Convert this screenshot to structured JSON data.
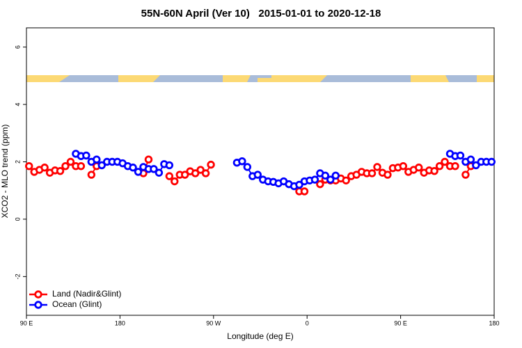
{
  "chart_data": {
    "type": "line",
    "title": "55N-60N April (Ver 10)   2015-01-01 to 2020-12-18",
    "xlabel": "Longitude (deg E)",
    "ylabel": "XCO2 - MLO trend (ppm)",
    "x": [
      92.5,
      97.5,
      102.5,
      107.5,
      112.5,
      117.5,
      122.5,
      127.5,
      132.5,
      137.5,
      142.5,
      147.5,
      152.5,
      157.5,
      162.5,
      167.5,
      172.5,
      177.5,
      182.5,
      187.5,
      192.5,
      197.5,
      202.5,
      207.5,
      212.5,
      217.5,
      222.5,
      227.5,
      232.5,
      237.5,
      242.5,
      247.5,
      252.5,
      257.5,
      262.5,
      267.5,
      272.5,
      277.5,
      282.5,
      287.5,
      292.5,
      297.5,
      302.5,
      307.5,
      312.5,
      317.5,
      322.5,
      327.5,
      332.5,
      337.5,
      342.5,
      347.5,
      352.5,
      357.5,
      362.5,
      367.5,
      372.5,
      377.5,
      382.5,
      387.5,
      392.5,
      397.5,
      402.5,
      407.5,
      412.5,
      417.5,
      422.5,
      427.5,
      432.5,
      437.5,
      442.5,
      447.5,
      452.5,
      457.5,
      462.5,
      467.5,
      472.5,
      477.5,
      482.5,
      487.5,
      492.5,
      497.5,
      502.5,
      507.5,
      512.5,
      517.5,
      522.5,
      527.5,
      532.5,
      537.5
    ],
    "series": [
      {
        "name": "Land (Nadir&Glint)",
        "color": "#ff0000",
        "values": [
          1.85,
          1.65,
          1.72,
          1.8,
          1.62,
          1.7,
          1.68,
          1.85,
          2.0,
          1.85,
          1.85,
          null,
          1.55,
          1.85,
          null,
          null,
          null,
          null,
          null,
          null,
          null,
          null,
          1.6,
          2.08,
          null,
          null,
          null,
          1.5,
          1.32,
          1.55,
          1.55,
          1.67,
          1.6,
          1.72,
          1.6,
          1.9,
          null,
          null,
          null,
          null,
          null,
          null,
          null,
          null,
          null,
          null,
          null,
          null,
          null,
          null,
          null,
          null,
          0.97,
          0.97,
          null,
          null,
          1.22,
          1.38,
          1.35,
          1.35,
          1.42,
          1.35,
          1.5,
          1.55,
          1.65,
          1.6,
          1.6,
          1.82,
          1.62,
          1.55,
          1.78,
          1.8,
          1.85,
          1.65,
          1.72,
          1.8,
          1.62,
          1.7,
          1.68,
          1.85,
          2.0,
          1.85,
          1.85,
          null,
          1.55,
          1.85,
          null,
          null,
          null,
          null
        ]
      },
      {
        "name": "Ocean (Glint)",
        "color": "#0000ff",
        "values": [
          null,
          null,
          null,
          null,
          null,
          null,
          null,
          null,
          null,
          2.28,
          2.2,
          2.22,
          2.0,
          2.08,
          1.88,
          2.0,
          2.0,
          2.0,
          1.95,
          1.85,
          1.8,
          1.65,
          1.82,
          1.75,
          1.75,
          1.62,
          1.92,
          1.88,
          null,
          null,
          null,
          null,
          null,
          null,
          null,
          null,
          null,
          null,
          null,
          null,
          1.97,
          2.02,
          1.82,
          1.5,
          1.55,
          1.38,
          1.32,
          1.3,
          1.25,
          1.32,
          1.22,
          1.15,
          1.2,
          1.32,
          1.35,
          1.38,
          1.6,
          1.52,
          1.38,
          1.52,
          null,
          null,
          null,
          null,
          null,
          null,
          null,
          null,
          null,
          null,
          null,
          null,
          null,
          null,
          null,
          null,
          null,
          null,
          null,
          null,
          null,
          2.28,
          2.2,
          2.22,
          2.0,
          2.08,
          1.88,
          2.0,
          2.0,
          2.0
        ]
      }
    ],
    "xlim": [
      90,
      540
    ],
    "xticks": [
      {
        "value": 90,
        "label": "90 E"
      },
      180,
      {
        "value": 270,
        "label": "90 W"
      },
      {
        "value": 360,
        "label": "0"
      },
      {
        "value": 450,
        "label": "90 E"
      },
      {
        "value": 540,
        "label": "180"
      }
    ],
    "ylim": [
      -3.35,
      6.67
    ],
    "yticks": [
      -2,
      0,
      2,
      4,
      6
    ],
    "legend": "bottom-left"
  }
}
